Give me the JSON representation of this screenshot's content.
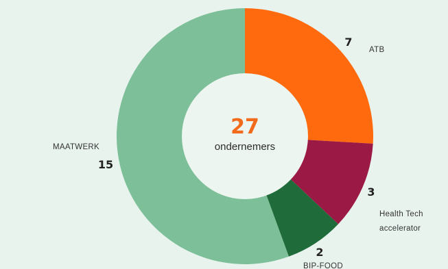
{
  "chart_data": {
    "type": "pie",
    "donut": true,
    "center": {
      "value": "27",
      "label": "ondernemers"
    },
    "slices": [
      {
        "name": "ATB",
        "value": 7,
        "color": "#ff6a0e"
      },
      {
        "name": "Health Tech accelerator",
        "name_lines": [
          "Health Tech",
          "accelerator"
        ],
        "value": 3,
        "color": "#9b1a45"
      },
      {
        "name": "BIP-FOOD",
        "value": 2,
        "color": "#1f6b3a"
      },
      {
        "name": "MAATWERK",
        "value": 15,
        "color": "#7dbf98"
      }
    ]
  },
  "colors": {
    "background": "#e8f3ee",
    "center_fill": "#ecf5f0",
    "center_number": "#f26a1b"
  }
}
